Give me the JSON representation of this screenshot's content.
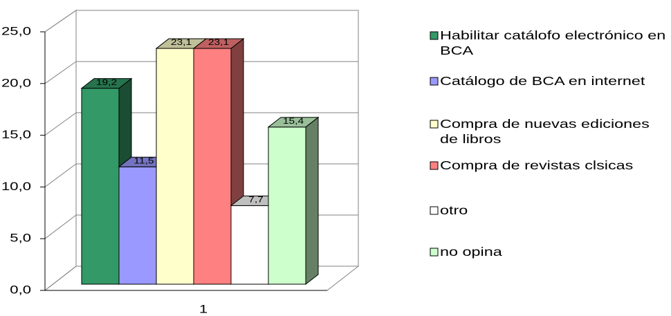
{
  "chart_data": {
    "type": "bar3d",
    "categories": [
      "1"
    ],
    "series": [
      {
        "name": "Habilitar catálofo electrónico en BCA",
        "color": "#339966",
        "values": [
          19.2
        ],
        "value_labels": [
          "19,2"
        ]
      },
      {
        "name": "Catálogo de BCA en internet",
        "color": "#9999ff",
        "values": [
          11.5
        ],
        "value_labels": [
          "11,5"
        ]
      },
      {
        "name": "Compra de nuevas ediciones de libros",
        "color": "#ffffcc",
        "values": [
          23.1
        ],
        "value_labels": [
          "23,1"
        ]
      },
      {
        "name": "Compra de revistas clsicas",
        "color": "#ff8080",
        "values": [
          23.1
        ],
        "value_labels": [
          "23,1"
        ]
      },
      {
        "name": "otro",
        "color": "#ffffff",
        "values": [
          7.7
        ],
        "value_labels": [
          "7,7"
        ]
      },
      {
        "name": "no opina",
        "color": "#ccffcc",
        "values": [
          15.4
        ],
        "value_labels": [
          "15,4"
        ]
      }
    ],
    "ylim": [
      0,
      25
    ],
    "yticks": [
      {
        "value": 0,
        "label": "0,0"
      },
      {
        "value": 5,
        "label": "5,0"
      },
      {
        "value": 10,
        "label": "10,0"
      },
      {
        "value": 15,
        "label": "15,0"
      },
      {
        "value": 20,
        "label": "20,0"
      },
      {
        "value": 25,
        "label": "25,0"
      }
    ],
    "grid": true,
    "legend": "right"
  }
}
